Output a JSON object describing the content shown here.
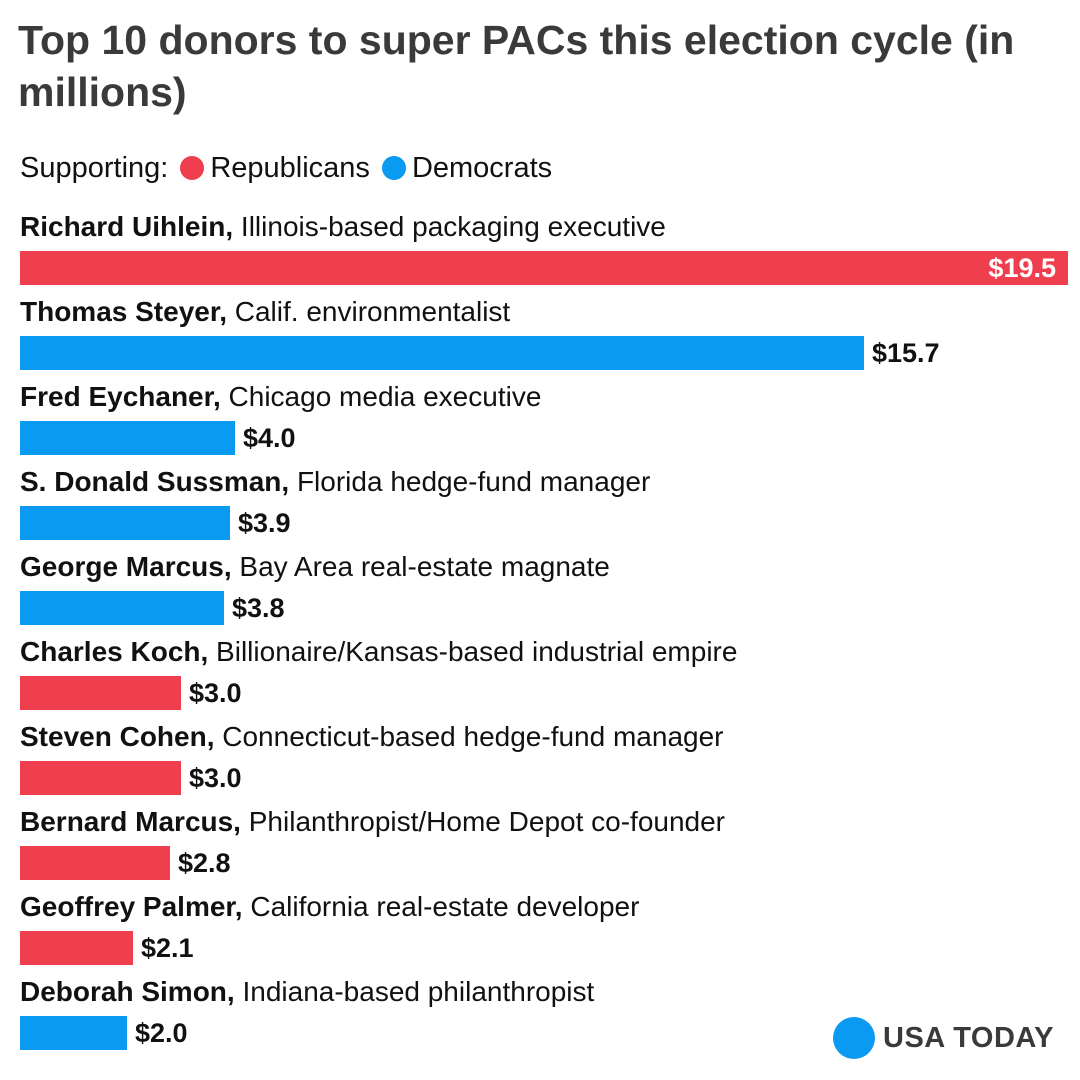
{
  "colors": {
    "republicans": "#ef3e4d",
    "democrats": "#0a9af2",
    "logo": "#0a9af2"
  },
  "legend": {
    "prefix": "Supporting:",
    "items": [
      {
        "label": "Republicans",
        "party": "republicans"
      },
      {
        "label": "Democrats",
        "party": "democrats"
      }
    ]
  },
  "logo": {
    "text": "USA TODAY"
  },
  "chart_data": {
    "type": "bar",
    "orientation": "horizontal",
    "title": "Top 10 donors to super PACs this election cycle (in millions)",
    "xlim": [
      0,
      19.5
    ],
    "grid": false,
    "legend_placement": "top-left",
    "bars": [
      {
        "name": "Richard Uihlein,",
        "description": "Illinois-based packaging executive",
        "value": 19.5,
        "label": "$19.5",
        "party": "republicans"
      },
      {
        "name": "Thomas Steyer,",
        "description": "Calif. environmentalist",
        "value": 15.7,
        "label": "$15.7",
        "party": "democrats"
      },
      {
        "name": "Fred Eychaner,",
        "description": "Chicago media executive",
        "value": 4.0,
        "label": "$4.0",
        "party": "democrats"
      },
      {
        "name": "S. Donald Sussman,",
        "description": "Florida hedge-fund manager",
        "value": 3.9,
        "label": "$3.9",
        "party": "democrats"
      },
      {
        "name": "George Marcus,",
        "description": "Bay Area real-estate magnate",
        "value": 3.8,
        "label": "$3.8",
        "party": "democrats"
      },
      {
        "name": "Charles Koch,",
        "description": "Billionaire/Kansas-based industrial empire",
        "value": 3.0,
        "label": "$3.0",
        "party": "republicans"
      },
      {
        "name": "Steven Cohen,",
        "description": "Connecticut-based hedge-fund manager",
        "value": 3.0,
        "label": "$3.0",
        "party": "republicans"
      },
      {
        "name": "Bernard Marcus,",
        "description": " Philanthropist/Home Depot co-founder",
        "value": 2.8,
        "label": "$2.8",
        "party": "republicans"
      },
      {
        "name": "Geoffrey Palmer,",
        "description": "California real-estate developer",
        "value": 2.1,
        "label": "$2.1",
        "party": "republicans"
      },
      {
        "name": "Deborah Simon,",
        "description": "Indiana-based philanthropist",
        "value": 2.0,
        "label": "$2.0",
        "party": "democrats"
      }
    ]
  }
}
